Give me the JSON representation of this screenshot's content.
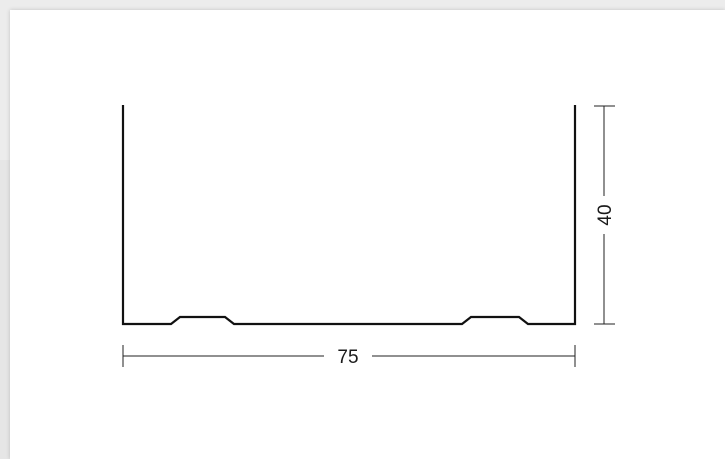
{
  "diagram": {
    "dimensions": {
      "width_label": "75",
      "height_label": "40"
    },
    "colors": {
      "profile": "#111111",
      "dimension": "#222222",
      "background": "#ececec",
      "sheet": "#ffffff"
    }
  }
}
